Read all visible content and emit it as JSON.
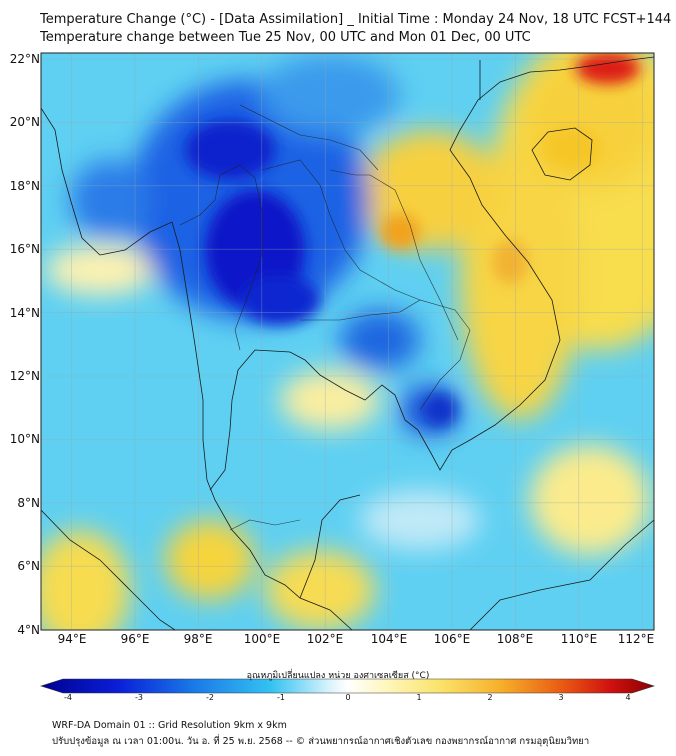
{
  "header": {
    "title_line1": "Temperature Change (°C) - [Data Assimilation] _ Initial Time : Monday 24 Nov, 18 UTC FCST+144",
    "title_line2": "Temperature change between Tue 25 Nov, 00 UTC and Mon 01 Dec, 00 UTC"
  },
  "map": {
    "lat_labels": [
      "22°N",
      "20°N",
      "18°N",
      "16°N",
      "14°N",
      "12°N",
      "10°N",
      "8°N",
      "6°N",
      "4°N"
    ],
    "lon_labels": [
      "94°E",
      "96°E",
      "98°E",
      "100°E",
      "102°E",
      "104°E",
      "106°E",
      "108°E",
      "110°E",
      "112°E"
    ],
    "background_color": "#5fd0f2",
    "features": [
      {
        "name": "strong cooling (dark blue) over north/central Thailand",
        "value": -3.5,
        "color": "#0b12c8"
      },
      {
        "name": "warming over central Laos",
        "value": 2.0,
        "color": "#f2a21c"
      },
      {
        "name": "warming over southern China",
        "value": 3.5,
        "color": "#dc1a14"
      },
      {
        "name": "warming over Hainan",
        "value": 1.8,
        "color": "#f6c628"
      },
      {
        "name": "warming over central Vietnam",
        "value": 1.5,
        "color": "#f6d23e"
      }
    ]
  },
  "colorbar": {
    "title": "อุณหภูมิเปลี่ยนแปลง หน่วย องศาเซลเซียส (°C)",
    "ticks": [
      "-4",
      "-3",
      "-2",
      "-1",
      "0",
      "1",
      "2",
      "3",
      "4"
    ],
    "min": -4,
    "max": 4,
    "colors": [
      "#00008f",
      "#0020e0",
      "#1a8fe8",
      "#33c2f2",
      "#d8f3fb",
      "#ffffff",
      "#fff7c0",
      "#fbe36a",
      "#f6b02a",
      "#ea5a12",
      "#d01010",
      "#8a0000"
    ]
  },
  "footer": {
    "line1": "WRF-DA Domain 01 :: Grid Resolution 9km x 9km",
    "line2": "ปรับปรุงข้อมูล ณ เวลา 01:00น. วัน อ. ที่ 25 พ.ย. 2568 -- © ส่วนพยากรณ์อากาศเชิงตัวเลข กองพยากรณ์อากาศ กรมอุตุนิยมวิทยา"
  }
}
